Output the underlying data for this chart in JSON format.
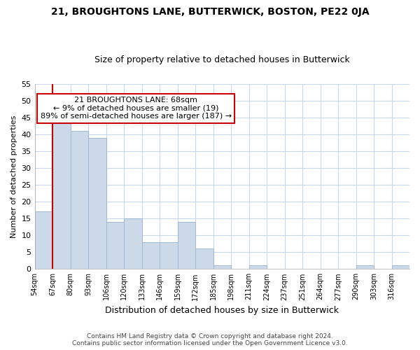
{
  "title": "21, BROUGHTONS LANE, BUTTERWICK, BOSTON, PE22 0JA",
  "subtitle": "Size of property relative to detached houses in Butterwick",
  "xlabel": "Distribution of detached houses by size in Butterwick",
  "ylabel": "Number of detached properties",
  "bin_labels": [
    "54sqm",
    "67sqm",
    "80sqm",
    "93sqm",
    "106sqm",
    "120sqm",
    "133sqm",
    "146sqm",
    "159sqm",
    "172sqm",
    "185sqm",
    "198sqm",
    "211sqm",
    "224sqm",
    "237sqm",
    "251sqm",
    "264sqm",
    "277sqm",
    "290sqm",
    "303sqm",
    "316sqm"
  ],
  "bar_heights": [
    17,
    45,
    41,
    39,
    14,
    15,
    8,
    8,
    14,
    6,
    1,
    0,
    1,
    0,
    0,
    0,
    0,
    0,
    1,
    0,
    1
  ],
  "bar_color": "#ccd9e8",
  "bar_edge_color": "#a0b8d0",
  "property_line_x": 1,
  "property_line_color": "#cc0000",
  "ylim": [
    0,
    55
  ],
  "yticks": [
    0,
    5,
    10,
    15,
    20,
    25,
    30,
    35,
    40,
    45,
    50,
    55
  ],
  "annotation_title": "21 BROUGHTONS LANE: 68sqm",
  "annotation_line1": "← 9% of detached houses are smaller (19)",
  "annotation_line2": "89% of semi-detached houses are larger (187) →",
  "annotation_box_color": "#ffffff",
  "annotation_box_edge": "#cc0000",
  "footer_line1": "Contains HM Land Registry data © Crown copyright and database right 2024.",
  "footer_line2": "Contains public sector information licensed under the Open Government Licence v3.0.",
  "background_color": "#ffffff",
  "grid_color": "#c8d8ea"
}
